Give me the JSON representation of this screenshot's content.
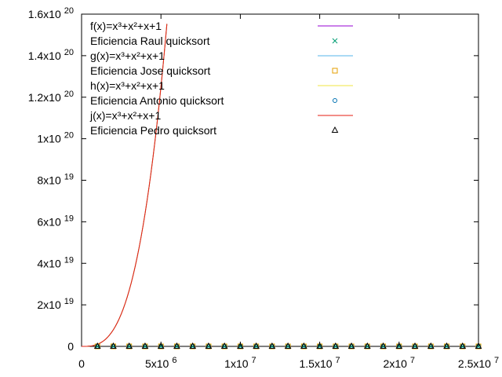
{
  "chart_data": {
    "type": "line",
    "title": "",
    "xlabel": "",
    "ylabel": "",
    "xlim": [
      0,
      25000000
    ],
    "ylim": [
      0,
      1.6e+20
    ],
    "grid": false,
    "legend_position": "top-left",
    "x_ticks": [
      {
        "value": 0,
        "base": "0",
        "exp": ""
      },
      {
        "value": 5000000,
        "base": "5x10",
        "exp": "6"
      },
      {
        "value": 10000000,
        "base": "1x10",
        "exp": "7"
      },
      {
        "value": 15000000,
        "base": "1.5x10",
        "exp": "7"
      },
      {
        "value": 20000000,
        "base": "2x10",
        "exp": "7"
      },
      {
        "value": 25000000,
        "base": "2.5x10",
        "exp": "7"
      }
    ],
    "y_ticks": [
      {
        "value": 0,
        "base": "0",
        "exp": ""
      },
      {
        "value": 2e+19,
        "base": "2x10",
        "exp": "19"
      },
      {
        "value": 4e+19,
        "base": "4x10",
        "exp": "19"
      },
      {
        "value": 6e+19,
        "base": "6x10",
        "exp": "19"
      },
      {
        "value": 8e+19,
        "base": "8x10",
        "exp": "19"
      },
      {
        "value": 1e+20,
        "base": "1x10",
        "exp": "20"
      },
      {
        "value": 1.2e+20,
        "base": "1.2x10",
        "exp": "20"
      },
      {
        "value": 1.4e+20,
        "base": "1.4x10",
        "exp": "20"
      },
      {
        "value": 1.6e+20,
        "base": "1.6x10",
        "exp": "20"
      }
    ],
    "series": [
      {
        "name": "f(x)=x³+x²+x+1",
        "kind": "line",
        "color": "#9400d3",
        "formula": "x^3+x^2+x+1",
        "x_range": [
          0,
          25000000
        ]
      },
      {
        "name": "Eficiencia Raul quicksort",
        "kind": "points",
        "marker": "cross",
        "color": "#009e73",
        "x": [
          1000000,
          2000000,
          3000000,
          4000000,
          5000000,
          6000000,
          7000000,
          8000000,
          9000000,
          10000000,
          11000000,
          12000000,
          13000000,
          14000000,
          15000000,
          16000000,
          17000000,
          18000000,
          19000000,
          20000000,
          21000000,
          22000000,
          23000000,
          24000000,
          25000000
        ],
        "y": [
          0,
          0,
          0,
          0,
          0,
          0,
          0,
          0,
          0,
          0,
          0,
          0,
          0,
          0,
          0,
          0,
          0,
          0,
          0,
          0,
          0,
          0,
          0,
          0,
          0
        ]
      },
      {
        "name": "g(x)=x³+x²+x+1",
        "kind": "line",
        "color": "#56b4e9",
        "formula": "x^3+x^2+x+1",
        "x_range": [
          0,
          25000000
        ]
      },
      {
        "name": "Eficiencia Jose quicksort",
        "kind": "points",
        "marker": "square",
        "color": "#e69f00",
        "x": [
          1000000,
          2000000,
          3000000,
          4000000,
          5000000,
          6000000,
          7000000,
          8000000,
          9000000,
          10000000,
          11000000,
          12000000,
          13000000,
          14000000,
          15000000,
          16000000,
          17000000,
          18000000,
          19000000,
          20000000,
          21000000,
          22000000,
          23000000,
          24000000,
          25000000
        ],
        "y": [
          0,
          0,
          0,
          0,
          0,
          0,
          0,
          0,
          0,
          0,
          0,
          0,
          0,
          0,
          0,
          0,
          0,
          0,
          0,
          0,
          0,
          0,
          0,
          0,
          0
        ]
      },
      {
        "name": "h(x)=x³+x²+x+1",
        "kind": "line",
        "color": "#f0e442",
        "formula": "x^3+x^2+x+1",
        "x_range": [
          0,
          25000000
        ]
      },
      {
        "name": "Eficiencia Antonio quicksort",
        "kind": "points",
        "marker": "circle",
        "color": "#0072b2",
        "x": [
          1000000,
          2000000,
          3000000,
          4000000,
          5000000,
          6000000,
          7000000,
          8000000,
          9000000,
          10000000,
          11000000,
          12000000,
          13000000,
          14000000,
          15000000,
          16000000,
          17000000,
          18000000,
          19000000,
          20000000,
          21000000,
          22000000,
          23000000,
          24000000,
          25000000
        ],
        "y": [
          0,
          0,
          0,
          0,
          0,
          0,
          0,
          0,
          0,
          0,
          0,
          0,
          0,
          0,
          0,
          0,
          0,
          0,
          0,
          0,
          0,
          0,
          0,
          0,
          0
        ]
      },
      {
        "name": "j(x)=x³+x²+x+1",
        "kind": "line",
        "color": "#e51e10",
        "formula": "x^3+x^2+x+1",
        "x_range": [
          0,
          25000000
        ]
      },
      {
        "name": "Eficiencia Pedro quicksort",
        "kind": "points",
        "marker": "triangle",
        "color": "#000000",
        "x": [
          1000000,
          2000000,
          3000000,
          4000000,
          5000000,
          6000000,
          7000000,
          8000000,
          9000000,
          10000000,
          11000000,
          12000000,
          13000000,
          14000000,
          15000000,
          16000000,
          17000000,
          18000000,
          19000000,
          20000000,
          21000000,
          22000000,
          23000000,
          24000000,
          25000000
        ],
        "y": [
          0,
          0,
          0,
          0,
          0,
          0,
          0,
          0,
          0,
          0,
          0,
          0,
          0,
          0,
          0,
          0,
          0,
          0,
          0,
          0,
          0,
          0,
          0,
          0,
          0
        ]
      }
    ]
  }
}
